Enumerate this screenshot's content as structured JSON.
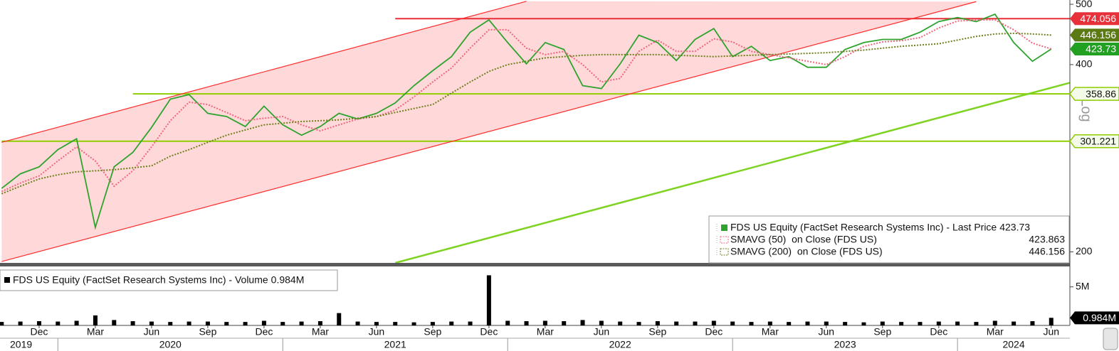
{
  "chart_data": [
    {
      "type": "line",
      "log": true,
      "scale_label": "Log",
      "x": [
        "2019-10",
        "2019-11",
        "2019-12",
        "2020-01",
        "2020-02",
        "2020-03",
        "2020-04",
        "2020-05",
        "2020-06",
        "2020-07",
        "2020-08",
        "2020-09",
        "2020-10",
        "2020-11",
        "2020-12",
        "2021-01",
        "2021-02",
        "2021-03",
        "2021-04",
        "2021-05",
        "2021-06",
        "2021-07",
        "2021-08",
        "2021-09",
        "2021-10",
        "2021-11",
        "2021-12",
        "2022-01",
        "2022-02",
        "2022-03",
        "2022-04",
        "2022-05",
        "2022-06",
        "2022-07",
        "2022-08",
        "2022-09",
        "2022-10",
        "2022-11",
        "2022-12",
        "2023-01",
        "2023-02",
        "2023-03",
        "2023-04",
        "2023-05",
        "2023-06",
        "2023-07",
        "2023-08",
        "2023-09",
        "2023-10",
        "2023-11",
        "2023-12",
        "2024-01",
        "2024-02",
        "2024-03",
        "2024-04",
        "2024-05",
        "2024-06"
      ],
      "series": [
        {
          "name": "FDS US Equity (FactSet Research Systems Inc) - Last Price",
          "color": "#2ea32e",
          "label_color": "#22a022",
          "values": [
            253,
            267,
            274,
            292,
            304,
            219,
            274,
            289,
            317,
            352,
            358,
            334,
            330,
            318,
            343,
            320,
            308,
            318,
            334,
            327,
            334,
            347,
            370,
            391,
            412,
            451,
            472,
            434,
            401,
            434,
            423,
            370,
            366,
            401,
            446,
            434,
            406,
            439,
            457,
            412,
            428,
            406,
            412,
            396,
            396,
            423,
            434,
            439,
            439,
            451,
            469,
            476,
            469,
            482,
            434,
            405,
            423.73
          ]
        },
        {
          "name": "SMAVG (50)  on Close (FDS US)",
          "color": "#f0657c",
          "dashed": true,
          "values": [
            250,
            258,
            265,
            280,
            295,
            280,
            255,
            270,
            295,
            325,
            348,
            345,
            335,
            325,
            328,
            330,
            320,
            313,
            320,
            327,
            330,
            338,
            355,
            375,
            395,
            425,
            455,
            455,
            425,
            415,
            420,
            400,
            375,
            380,
            420,
            438,
            420,
            420,
            440,
            435,
            420,
            415,
            410,
            405,
            400,
            412,
            428,
            435,
            437,
            442,
            458,
            470,
            472,
            472,
            455,
            433,
            423.863
          ]
        },
        {
          "name": "SMAVG (200)  on Close (FDS US)",
          "color": "#6e7f1a",
          "label_color": "#5c7a14",
          "dashed": true,
          "values": [
            248,
            255,
            262,
            266,
            269,
            270,
            271,
            273,
            275,
            285,
            292,
            300,
            308,
            314,
            320,
            322,
            324,
            325,
            326,
            328,
            330,
            335,
            340,
            345,
            360,
            375,
            390,
            400,
            405,
            410,
            412,
            414,
            415,
            415,
            415,
            415,
            414,
            413,
            412,
            413,
            414,
            415,
            416,
            417,
            418,
            420,
            422,
            425,
            428,
            430,
            432,
            438,
            444,
            448,
            449,
            448,
            446.156
          ]
        }
      ],
      "ylim": [
        192,
        508
      ],
      "yticks": [
        200,
        400,
        500
      ],
      "grid": false,
      "legend": "lower right",
      "levels": [
        {
          "value": 474.056,
          "color": "#e8303a",
          "start": "2021-07",
          "label_style": "filled"
        },
        {
          "value": 358.86,
          "color": "#8fce00",
          "start": "2020-05",
          "label_style": "outline"
        },
        {
          "value": 301.221,
          "color": "#8fce00",
          "start": "2019-10",
          "label_style": "outline"
        }
      ],
      "trendlines": [
        {
          "x": [
            "2019-10",
            "2022-02"
          ],
          "values": [
            300,
            505.6
          ],
          "color": "#ff2a2a"
        },
        {
          "x": [
            "2019-10",
            "2024-02"
          ],
          "values": [
            193,
            505
          ],
          "color": "#ff2a2a"
        },
        {
          "x": [
            "2021-07",
            "2024-07"
          ],
          "values": [
            192,
            374
          ],
          "color": "#7ed321"
        }
      ],
      "channel_fill": "#ffd9d9"
    },
    {
      "type": "bar",
      "x": [
        "2019-10",
        "2019-11",
        "2019-12",
        "2020-01",
        "2020-02",
        "2020-03",
        "2020-04",
        "2020-05",
        "2020-06",
        "2020-07",
        "2020-08",
        "2020-09",
        "2020-10",
        "2020-11",
        "2020-12",
        "2021-01",
        "2021-02",
        "2021-03",
        "2021-04",
        "2021-05",
        "2021-06",
        "2021-07",
        "2021-08",
        "2021-09",
        "2021-10",
        "2021-11",
        "2021-12",
        "2022-01",
        "2022-02",
        "2022-03",
        "2022-04",
        "2022-05",
        "2022-06",
        "2022-07",
        "2022-08",
        "2022-09",
        "2022-10",
        "2022-11",
        "2022-12",
        "2023-01",
        "2023-02",
        "2023-03",
        "2023-04",
        "2023-05",
        "2023-06",
        "2023-07",
        "2023-08",
        "2023-09",
        "2023-10",
        "2023-11",
        "2023-12",
        "2024-01",
        "2024-02",
        "2024-03",
        "2024-04",
        "2024-05",
        "2024-06"
      ],
      "series": [
        {
          "name": "FDS US Equity (FactSet Research Systems Inc) - Volume",
          "color": "#000000",
          "values": [
            0.45,
            0.5,
            0.55,
            0.5,
            0.6,
            1.3,
            0.7,
            0.55,
            0.5,
            0.45,
            0.5,
            0.5,
            0.45,
            0.45,
            0.6,
            0.45,
            0.5,
            0.55,
            1.6,
            0.5,
            0.45,
            0.45,
            0.4,
            0.45,
            0.5,
            0.5,
            6.5,
            0.6,
            0.55,
            0.6,
            0.55,
            0.7,
            0.6,
            0.5,
            0.45,
            0.55,
            0.5,
            0.5,
            0.6,
            0.5,
            0.45,
            0.5,
            0.45,
            0.5,
            0.5,
            0.45,
            0.4,
            0.5,
            0.45,
            0.45,
            0.5,
            0.5,
            0.45,
            0.6,
            0.5,
            0.55,
            0.984
          ],
          "value_labels": {
            "56": "0.984M"
          }
        }
      ],
      "ylim": [
        0,
        7
      ],
      "yticks": [
        {
          "value": 5,
          "label": "5M"
        }
      ],
      "xticks": [
        {
          "value": "2019-12",
          "label": "Dec"
        },
        {
          "value": "2020-03",
          "label": "Mar"
        },
        {
          "value": "2020-06",
          "label": "Jun"
        },
        {
          "value": "2020-09",
          "label": "Sep"
        },
        {
          "value": "2020-12",
          "label": "Dec"
        },
        {
          "value": "2021-03",
          "label": "Mar"
        },
        {
          "value": "2021-06",
          "label": "Jun"
        },
        {
          "value": "2021-09",
          "label": "Sep"
        },
        {
          "value": "2021-12",
          "label": "Dec"
        },
        {
          "value": "2022-03",
          "label": "Mar"
        },
        {
          "value": "2022-06",
          "label": "Jun"
        },
        {
          "value": "2022-09",
          "label": "Sep"
        },
        {
          "value": "2022-12",
          "label": "Dec"
        },
        {
          "value": "2023-03",
          "label": "Mar"
        },
        {
          "value": "2023-06",
          "label": "Jun"
        },
        {
          "value": "2023-09",
          "label": "Sep"
        },
        {
          "value": "2023-12",
          "label": "Dec"
        },
        {
          "value": "2024-03",
          "label": "Mar"
        },
        {
          "value": "2024-06",
          "label": "Jun"
        }
      ],
      "years": [
        2019,
        2020,
        2021,
        2022,
        2023,
        2024
      ]
    }
  ]
}
